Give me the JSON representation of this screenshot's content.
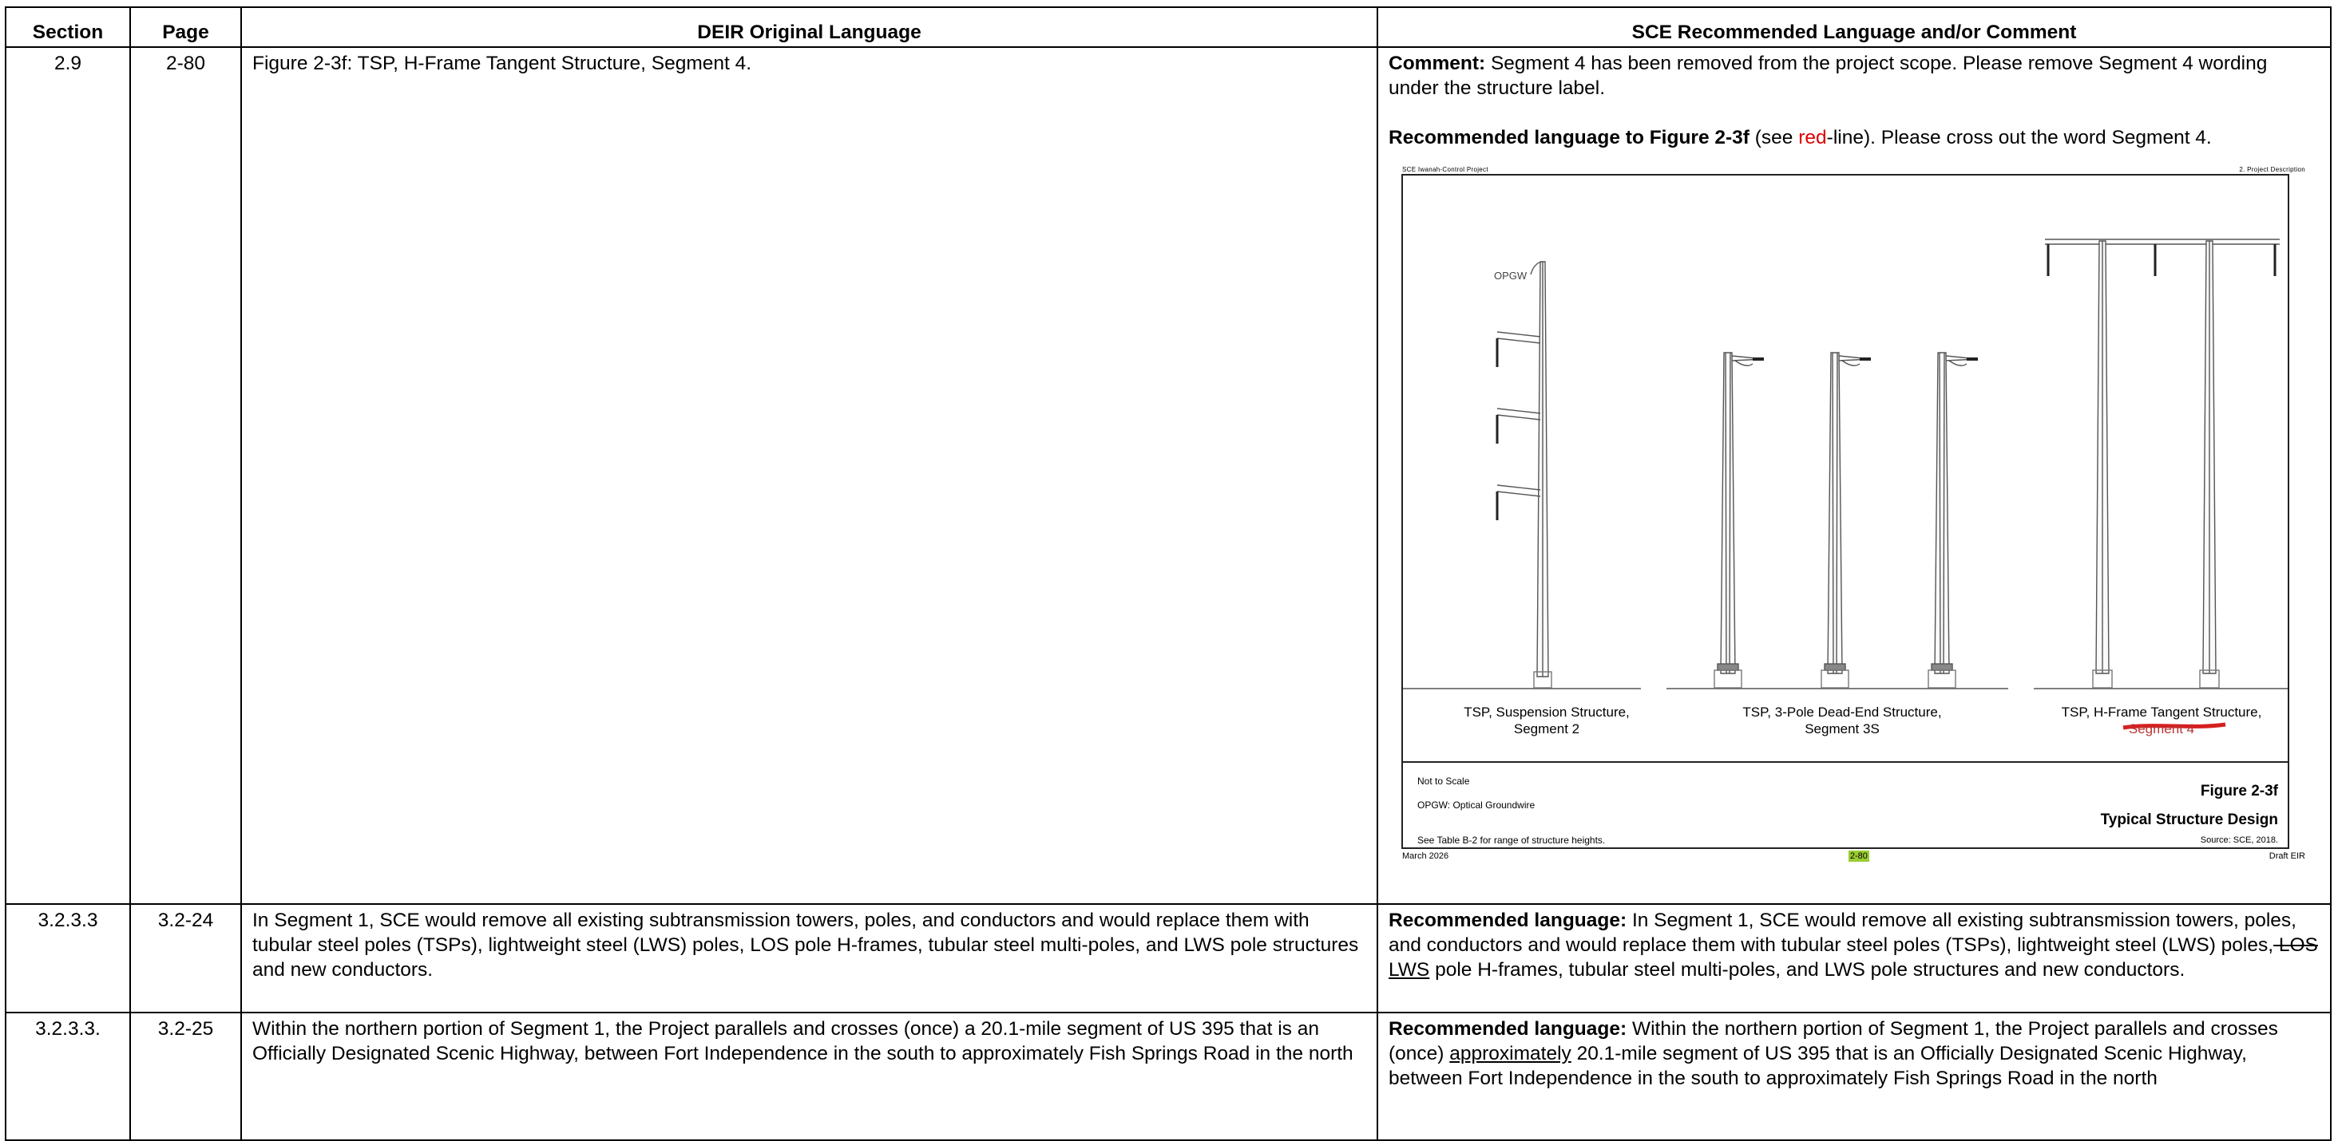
{
  "headers": {
    "section": "Section",
    "page": "Page",
    "deir": "DEIR Original Language",
    "sce": "SCE Recommended Language and/or Comment"
  },
  "rows": [
    {
      "section": "2.9",
      "page": "2-80",
      "deir": "Figure 2-3f: TSP, H-Frame Tangent Structure, Segment 4.",
      "comment_label": "Comment:",
      "comment_text": " Segment 4 has been removed from the project scope. Please remove Segment 4 wording under the structure label.",
      "rec_label": "Recommended language to Figure 2-3f",
      "rec_pre": " (see ",
      "rec_red": "red",
      "rec_post": "-line). Please cross out the word Segment 4."
    },
    {
      "section": "3.2.3.3",
      "page": "3.2-24",
      "deir": "In Segment 1, SCE would remove all existing subtransmission towers, poles, and conductors and would replace them with tubular steel poles (TSPs), lightweight steel (LWS) poles, LOS pole H-frames, tubular steel multi-poles, and LWS pole structures and new conductors.",
      "rec_label": "Recommended language:",
      "rec_pre": " In Segment 1, SCE would remove all existing subtransmission towers, poles, and conductors and would replace them with tubular steel poles (TSPs), lightweight steel (LWS) poles,",
      "rec_strike": " LOS",
      "rec_sp": " ",
      "rec_ul": "LWS",
      "rec_post": " pole H-frames, tubular steel multi-poles, and LWS pole structures and new conductors."
    },
    {
      "section": "3.2.3.3.",
      "page": "3.2-25",
      "deir": "Within the northern portion of Segment 1, the Project parallels and crosses (once) a 20.1-mile segment of US 395 that is an Officially Designated Scenic Highway, between Fort Independence in the south to approximately Fish Springs Road in the north",
      "rec_label": "Recommended language:",
      "rec_pre": " Within the northern portion of Segment 1, the Project parallels and crosses (once) ",
      "rec_ul": "approximately",
      "rec_post": " 20.1-mile segment of US 395 that is an Officially Designated Scenic Highway, between Fort Independence in the south to approximately Fish Springs Road in the north"
    }
  ],
  "figure": {
    "header_left": "SCE Iwanah-Control Project",
    "header_right": "2. Project Description",
    "opgw_label": "OPGW",
    "caption1_a": "TSP, Suspension Structure,",
    "caption1_b": "Segment 2",
    "caption2_a": "TSP, 3-Pole Dead-End Structure,",
    "caption2_b": "Segment 3S",
    "caption3_a": "TSP, H-Frame Tangent Structure,",
    "caption3_b": "Segment 4",
    "not_to_scale": "Not to Scale",
    "opgw_def": "OPGW: Optical Groundwire",
    "see_table": "See Table B-2 for range of structure heights.",
    "fig_num": "Figure 2-3f",
    "fig_title": "Typical Structure Design",
    "source": "Source: SCE, 2018.",
    "footer_left": "March 2026",
    "footer_page": "2-80",
    "footer_right": "Draft EIR",
    "redline_color": "#d61f1f"
  }
}
